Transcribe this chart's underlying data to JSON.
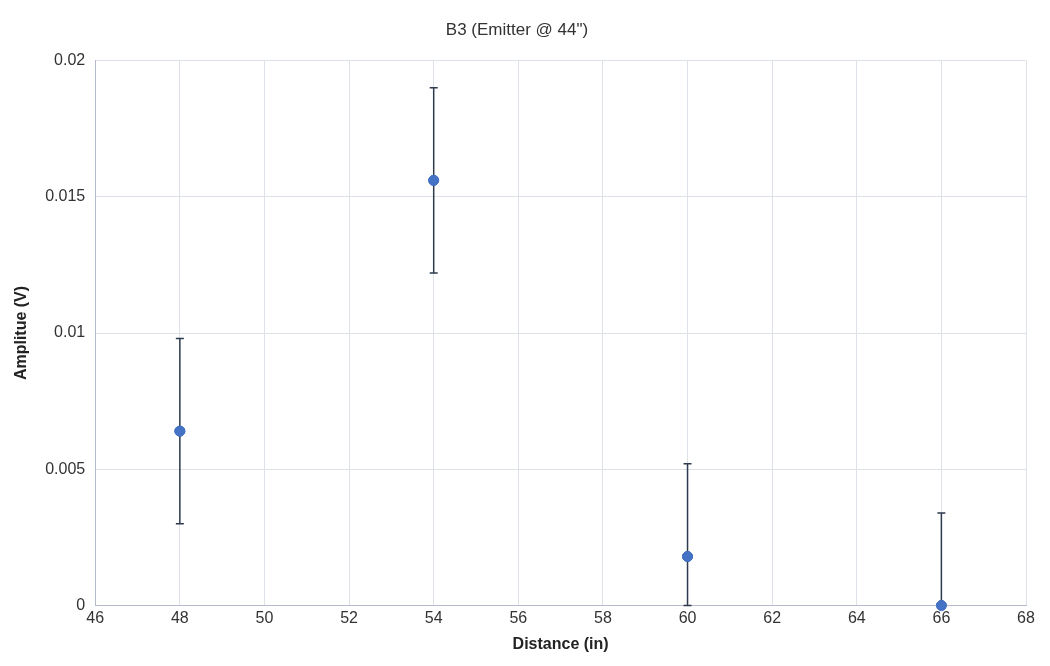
{
  "chart_data": {
    "type": "scatter",
    "title": "B3 (Emitter @ 44\")",
    "xlabel": "Distance (in)",
    "ylabel": "Amplitue (V)",
    "x": [
      48,
      54,
      60,
      66
    ],
    "series": [
      {
        "color": "#4472c4",
        "values": [
          0.0064,
          0.0156,
          0.0018,
          0
        ],
        "errors": [
          0.0034,
          0.0034,
          [
            0,
            0.0052
          ],
          [
            0,
            0.0034
          ]
        ]
      }
    ],
    "xlim": [
      46,
      68
    ],
    "xticks": [
      46,
      48,
      50,
      52,
      54,
      56,
      58,
      60,
      62,
      64,
      66,
      68
    ],
    "ylim": [
      0,
      0.02
    ],
    "yticks": [
      0,
      0.005,
      0.01,
      0.015,
      0.02
    ],
    "grid": true,
    "legend": false,
    "marker": "circle"
  }
}
